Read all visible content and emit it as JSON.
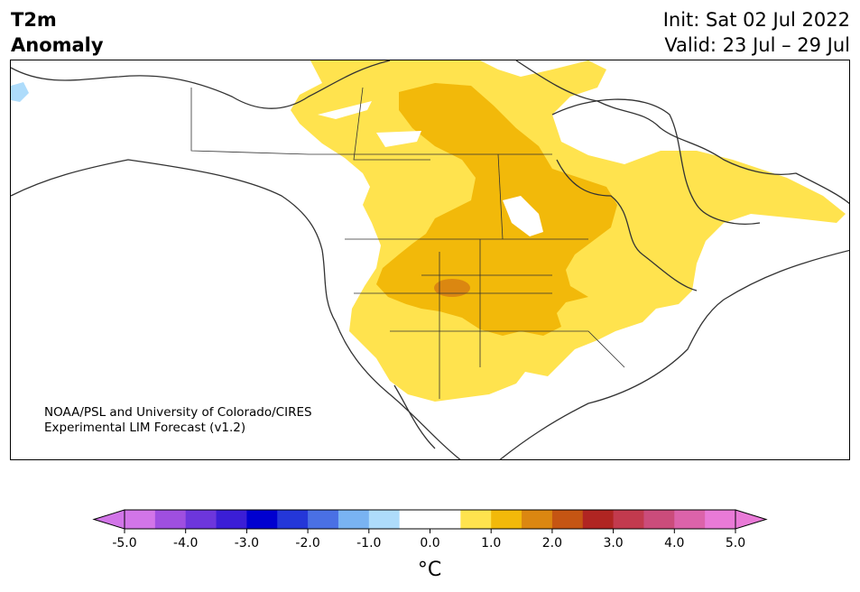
{
  "header": {
    "title_line1": "T2m",
    "title_line2": "Anomaly",
    "init": "Init: Sat 02 Jul 2022",
    "valid": "Valid: 23 Jul – 29 Jul"
  },
  "credit": {
    "line1": "NOAA/PSL and University of Colorado/CIRES",
    "line2": "Experimental LIM Forecast (v1.2)"
  },
  "colorbar": {
    "unit": "°C",
    "ticks": [
      "-5.0",
      "-4.0",
      "-3.0",
      "-2.0",
      "-1.0",
      "0.0",
      "1.0",
      "2.0",
      "3.0",
      "4.0",
      "5.0"
    ],
    "colors": [
      "#d275e8",
      "#9f4fe0",
      "#6d36dc",
      "#3b1ed6",
      "#0000d0",
      "#2437d9",
      "#4a70e4",
      "#79b3f2",
      "#aedcfb",
      "#ffffff",
      "#ffffff",
      "#ffe34e",
      "#f2b90a",
      "#db8711",
      "#c55513",
      "#b02522",
      "#c23a4e",
      "#cb4c7b",
      "#dc63aa",
      "#e97ad7"
    ],
    "under_color": "#d275e8",
    "over_color": "#e97ad7"
  },
  "map_colors": {
    "anom_0_5_to_1_0": "#ffe34e",
    "anom_1_0_to_1_5": "#f2b90a",
    "anom_1_5_to_2_0": "#db8711",
    "anom_neg_0_5_to_neg_1_0": "#aedcfb",
    "coast": "#333333"
  }
}
